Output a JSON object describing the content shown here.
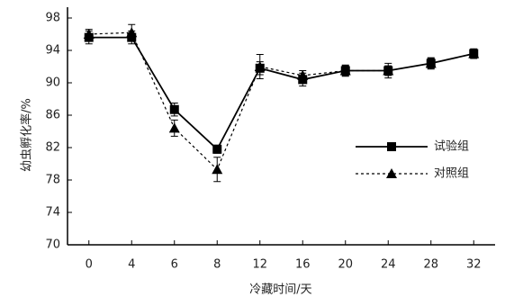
{
  "chart_data": {
    "type": "line",
    "ylabel": "幼虫孵化率/%",
    "xlabel": "冷藏时间/天",
    "categories": [
      "0",
      "4",
      "6",
      "8",
      "12",
      "16",
      "20",
      "24",
      "28",
      "32"
    ],
    "series": [
      {
        "name": "试验组",
        "color": "#000000",
        "marker": "square",
        "dash": false,
        "values": [
          95.6,
          95.6,
          86.7,
          81.8,
          91.8,
          90.4,
          91.5,
          91.5,
          92.4,
          93.6
        ],
        "errors": [
          0.8,
          0.8,
          0.8,
          0.5,
          0.8,
          0.8,
          0.7,
          0.9,
          0.7,
          0.5
        ]
      },
      {
        "name": "对照组",
        "color": "#000000",
        "marker": "triangle",
        "dash": true,
        "values": [
          96.0,
          96.2,
          84.4,
          79.3,
          92.0,
          90.9,
          91.5,
          91.5,
          92.4,
          93.6
        ],
        "errors": [
          0.6,
          1.0,
          1.0,
          1.5,
          1.5,
          0.6,
          0.6,
          0.6,
          0.6,
          0.6
        ]
      }
    ],
    "ylim": [
      70,
      98
    ],
    "yticks": [
      70,
      74,
      78,
      82,
      86,
      90,
      94,
      98
    ],
    "legend": "right"
  }
}
